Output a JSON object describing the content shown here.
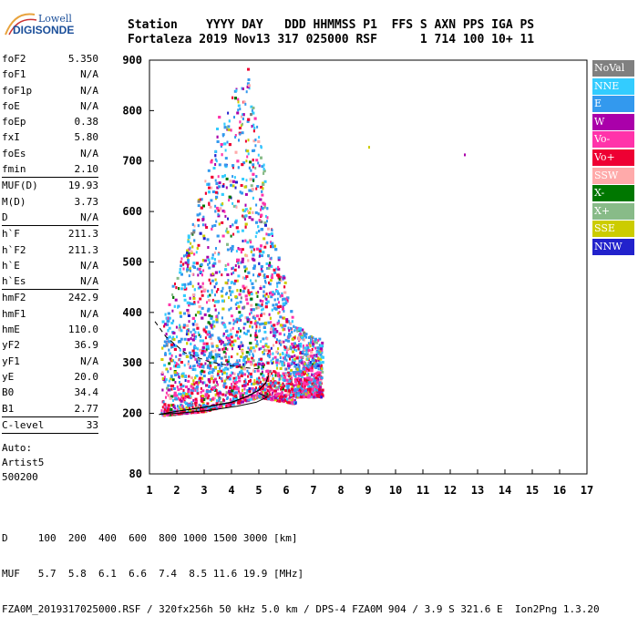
{
  "logo": {
    "line1": "Lowell",
    "line2": "DIGISONDE"
  },
  "header": {
    "line1": "Station    YYYY DAY   DDD HHMMSS P1  FFS S AXN PPS IGA PS",
    "line2": "Fortaleza 2019 Nov13 317 025000 RSF      1 714 100 10+ 11"
  },
  "params": {
    "group1": [
      {
        "k": "foF2",
        "v": "5.350"
      },
      {
        "k": "foF1",
        "v": "N/A"
      },
      {
        "k": "foF1p",
        "v": "N/A"
      },
      {
        "k": "foE",
        "v": "N/A"
      },
      {
        "k": "foEp",
        "v": "0.38"
      },
      {
        "k": "fxI",
        "v": "5.80"
      },
      {
        "k": "foEs",
        "v": "N/A"
      },
      {
        "k": "fmin",
        "v": "2.10"
      }
    ],
    "group2": [
      {
        "k": "MUF(D)",
        "v": "19.93"
      },
      {
        "k": "M(D)",
        "v": "3.73"
      },
      {
        "k": "D",
        "v": "N/A"
      }
    ],
    "group3": [
      {
        "k": "h`F",
        "v": "211.3"
      },
      {
        "k": "h`F2",
        "v": "211.3"
      },
      {
        "k": "h`E",
        "v": "N/A"
      },
      {
        "k": "h`Es",
        "v": "N/A"
      }
    ],
    "group4": [
      {
        "k": "hmF2",
        "v": "242.9"
      },
      {
        "k": "hmF1",
        "v": "N/A"
      },
      {
        "k": "hmE",
        "v": "110.0"
      },
      {
        "k": "yF2",
        "v": "36.9"
      },
      {
        "k": "yF1",
        "v": "N/A"
      },
      {
        "k": "yE",
        "v": "20.0"
      },
      {
        "k": "B0",
        "v": "34.4"
      },
      {
        "k": "B1",
        "v": "2.77"
      }
    ],
    "group5": [
      {
        "k": "C-level",
        "v": "33"
      }
    ]
  },
  "auto": {
    "line1": "Auto:",
    "line2": "Artist5",
    "line3": "500200"
  },
  "legend": [
    {
      "label": "NoVal",
      "color": "#808080"
    },
    {
      "label": "NNE",
      "color": "#33ccff"
    },
    {
      "label": "E",
      "color": "#3399ee"
    },
    {
      "label": "W",
      "color": "#aa00aa"
    },
    {
      "label": "Vo-",
      "color": "#ff33aa"
    },
    {
      "label": "Vo+",
      "color": "#ee0033"
    },
    {
      "label": "SSW",
      "color": "#ffaaaa"
    },
    {
      "label": "X-",
      "color": "#007700"
    },
    {
      "label": "X+",
      "color": "#88bb88"
    },
    {
      "label": "SSE",
      "color": "#cccc00"
    },
    {
      "label": "NNW",
      "color": "#2222cc"
    }
  ],
  "footer": {
    "line1": "D     100  200  400  600  800 1000 1500 3000 [km]",
    "line2": "MUF   5.7  5.8  6.1  6.6  7.4  8.5 11.6 19.9 [MHz]",
    "line3": "FZA0M_2019317025000.RSF / 320fx256h 50 kHz 5.0 km / DPS-4 FZA0M 904 / 3.9 S 321.6 E  Ion2Png 1.3.20"
  },
  "chart_data": {
    "type": "scatter",
    "xlim": [
      1,
      17
    ],
    "ylim": [
      80,
      900
    ],
    "x_ticks": [
      "1",
      "2",
      "3",
      "4",
      "5",
      "6",
      "7",
      "8",
      "9",
      "10",
      "11",
      "12",
      "13",
      "14",
      "15",
      "16",
      "17"
    ],
    "y_ticks": [
      "80",
      "200",
      "300",
      "400",
      "500",
      "600",
      "700",
      "800",
      "900"
    ],
    "y_tick_values": [
      80,
      200,
      300,
      400,
      500,
      600,
      700,
      800,
      900
    ],
    "grid": false,
    "series": [
      {
        "color": "#3399ee",
        "weight": 32
      },
      {
        "color": "#33ccff",
        "weight": 14
      },
      {
        "color": "#aa00aa",
        "weight": 12
      },
      {
        "color": "#ff33aa",
        "weight": 10
      },
      {
        "color": "#ee0033",
        "weight": 10
      },
      {
        "color": "#ffaaaa",
        "weight": 6
      },
      {
        "color": "#cccc00",
        "weight": 9
      },
      {
        "color": "#007700",
        "weight": 3
      },
      {
        "color": "#88bb88",
        "weight": 3
      },
      {
        "color": "#2222cc",
        "weight": 2
      },
      {
        "color": "#808080",
        "weight": 1
      }
    ],
    "trace_profile": [
      {
        "x": 1.35,
        "y": 198
      },
      {
        "x": 2.0,
        "y": 204
      },
      {
        "x": 3.0,
        "y": 212
      },
      {
        "x": 4.0,
        "y": 222
      },
      {
        "x": 4.6,
        "y": 234
      },
      {
        "x": 5.0,
        "y": 246
      },
      {
        "x": 5.25,
        "y": 260
      },
      {
        "x": 5.35,
        "y": 275
      }
    ],
    "profile_curve": [
      {
        "x": 1.35,
        "y": 198
      },
      {
        "x": 2.2,
        "y": 201
      },
      {
        "x": 3.2,
        "y": 206
      },
      {
        "x": 4.2,
        "y": 214
      },
      {
        "x": 4.9,
        "y": 222
      },
      {
        "x": 5.3,
        "y": 232
      },
      {
        "x": 5.0,
        "y": 240
      }
    ],
    "dashed_curve": [
      {
        "x": 1.2,
        "y": 382
      },
      {
        "x": 1.6,
        "y": 352
      },
      {
        "x": 2.3,
        "y": 320
      },
      {
        "x": 3.2,
        "y": 302
      },
      {
        "x": 4.2,
        "y": 292
      },
      {
        "x": 5.0,
        "y": 288
      }
    ],
    "isolated_points": [
      {
        "x": 9.0,
        "y": 730,
        "color": "#cccc00"
      },
      {
        "x": 12.5,
        "y": 715,
        "color": "#aa00aa"
      }
    ]
  }
}
